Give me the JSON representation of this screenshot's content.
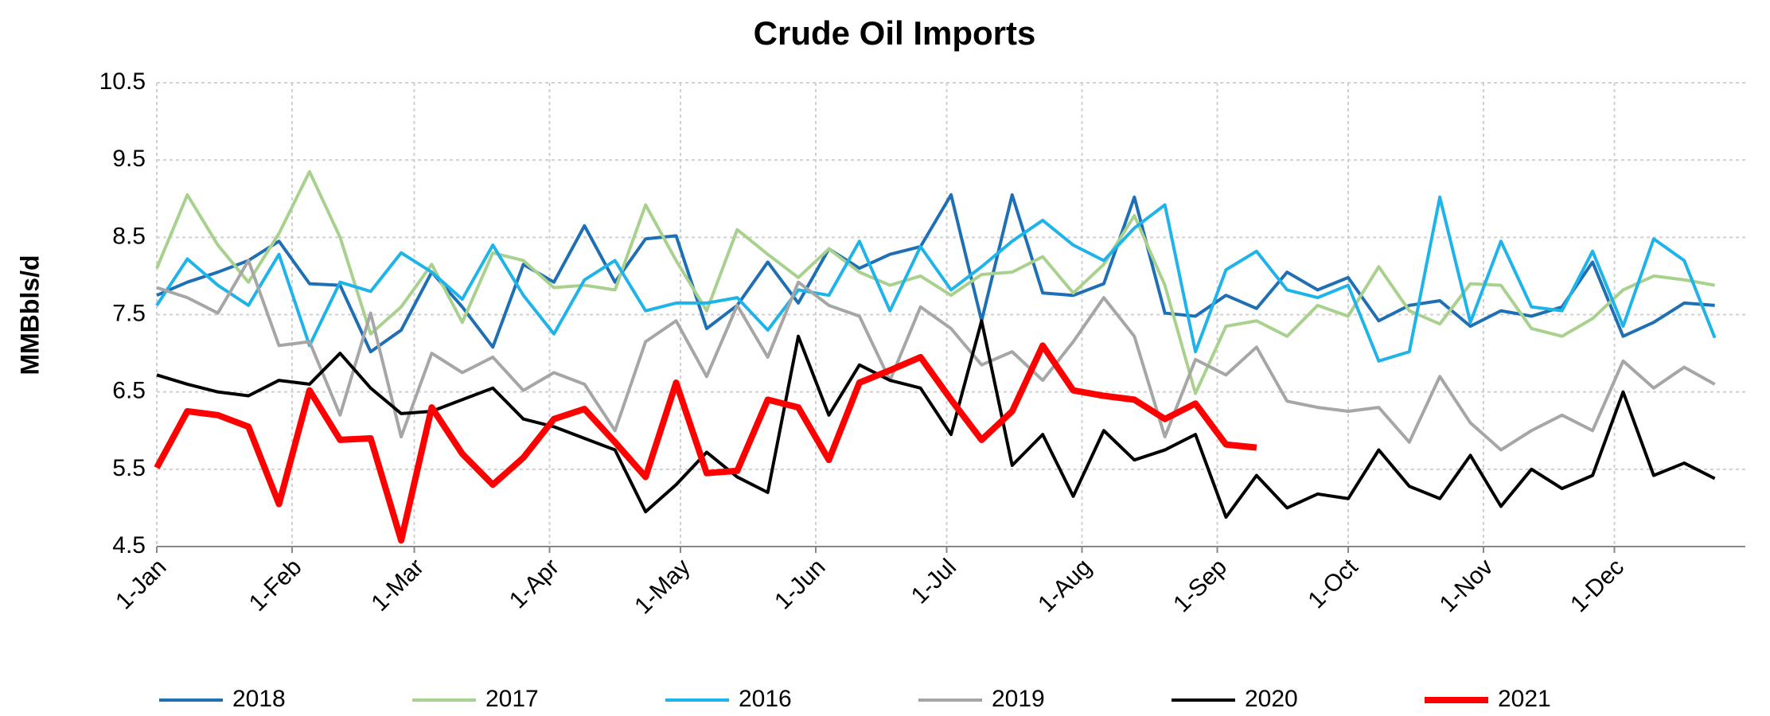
{
  "chart_data": {
    "type": "line",
    "title": "Crude Oil Imports",
    "y_label": "MMBbls/d",
    "x": [
      0,
      7,
      14,
      21,
      28,
      35,
      42,
      49,
      56,
      63,
      70,
      77,
      84,
      91,
      98,
      105,
      112,
      119,
      126,
      133,
      140,
      147,
      154,
      161,
      168,
      175,
      182,
      189,
      196,
      203,
      210,
      217,
      224,
      231,
      238,
      245,
      252,
      259,
      266,
      273,
      280,
      287,
      294,
      301,
      308,
      315,
      322,
      329,
      336,
      343,
      350,
      357
    ],
    "xlim": [
      0,
      364
    ],
    "xticks": [
      {
        "value": 0,
        "label": "1-Jan"
      },
      {
        "value": 31,
        "label": "1-Feb"
      },
      {
        "value": 59,
        "label": "1-Mar"
      },
      {
        "value": 90,
        "label": "1-Apr"
      },
      {
        "value": 120,
        "label": "1-May"
      },
      {
        "value": 151,
        "label": "1-Jun"
      },
      {
        "value": 181,
        "label": "1-Jul"
      },
      {
        "value": 212,
        "label": "1-Aug"
      },
      {
        "value": 243,
        "label": "1-Sep"
      },
      {
        "value": 273,
        "label": "1-Oct"
      },
      {
        "value": 304,
        "label": "1-Nov"
      },
      {
        "value": 334,
        "label": "1-Dec"
      }
    ],
    "ylim": [
      4.5,
      10.5
    ],
    "yticks": [
      4.5,
      5.5,
      6.5,
      7.5,
      8.5,
      9.5,
      10.5
    ],
    "grid": true,
    "legend": "bottom",
    "series": [
      {
        "name": "2018",
        "color": "#1f6fb4",
        "width": 4,
        "values": [
          7.75,
          7.92,
          8.05,
          8.2,
          8.45,
          7.9,
          7.88,
          7.02,
          7.3,
          8.05,
          7.6,
          7.08,
          8.15,
          7.92,
          8.65,
          7.92,
          8.48,
          8.52,
          7.32,
          7.62,
          8.18,
          7.65,
          8.35,
          8.1,
          8.28,
          8.38,
          9.05,
          7.42,
          9.05,
          7.78,
          7.75,
          7.9,
          9.02,
          7.52,
          7.48,
          7.75,
          7.58,
          8.05,
          7.82,
          7.98,
          7.42,
          7.62,
          7.68,
          7.35,
          7.55,
          7.48,
          7.6,
          8.18,
          7.22,
          7.4,
          7.65,
          7.62
        ]
      },
      {
        "name": "2017",
        "color": "#a9d18e",
        "width": 4,
        "values": [
          8.1,
          9.05,
          8.4,
          7.92,
          8.55,
          9.35,
          8.5,
          7.25,
          7.6,
          8.15,
          7.4,
          8.3,
          8.2,
          7.85,
          7.88,
          7.82,
          8.92,
          8.2,
          7.55,
          8.6,
          8.28,
          7.98,
          8.35,
          8.05,
          7.88,
          8.0,
          7.75,
          8.02,
          8.05,
          8.25,
          7.78,
          8.15,
          8.78,
          7.88,
          6.48,
          7.35,
          7.42,
          7.22,
          7.62,
          7.48,
          8.12,
          7.55,
          7.38,
          7.9,
          7.88,
          7.32,
          7.22,
          7.45,
          7.82,
          8.0,
          7.95,
          7.88
        ]
      },
      {
        "name": "2016",
        "color": "#1eb4ea",
        "width": 4,
        "values": [
          7.62,
          8.22,
          7.88,
          7.62,
          8.28,
          7.1,
          7.92,
          7.8,
          8.3,
          8.05,
          7.7,
          8.4,
          7.75,
          7.25,
          7.95,
          8.2,
          7.55,
          7.65,
          7.65,
          7.72,
          7.3,
          7.82,
          7.75,
          8.45,
          7.55,
          8.38,
          7.82,
          8.12,
          8.45,
          8.72,
          8.4,
          8.2,
          8.62,
          8.92,
          7.02,
          8.08,
          8.32,
          7.82,
          7.72,
          7.88,
          6.9,
          7.02,
          9.02,
          7.4,
          8.45,
          7.6,
          7.55,
          8.32,
          7.35,
          8.48,
          8.2,
          7.2
        ]
      },
      {
        "name": "2019",
        "color": "#a6a6a6",
        "width": 4,
        "values": [
          7.85,
          7.72,
          7.52,
          8.2,
          7.1,
          7.15,
          6.2,
          7.52,
          5.92,
          7.0,
          6.75,
          6.95,
          6.52,
          6.75,
          6.6,
          6.0,
          7.15,
          7.42,
          6.7,
          7.62,
          6.95,
          7.92,
          7.62,
          7.48,
          6.65,
          7.6,
          7.32,
          6.85,
          7.02,
          6.65,
          7.15,
          7.72,
          7.22,
          5.92,
          6.92,
          6.72,
          7.08,
          6.38,
          6.3,
          6.25,
          6.3,
          5.85,
          6.7,
          6.1,
          5.75,
          6.0,
          6.2,
          6.0,
          6.9,
          6.55,
          6.82,
          6.6
        ]
      },
      {
        "name": "2020",
        "color": "#000000",
        "width": 4,
        "values": [
          6.72,
          6.6,
          6.5,
          6.45,
          6.65,
          6.6,
          7.0,
          6.55,
          6.22,
          6.25,
          6.4,
          6.55,
          6.15,
          6.05,
          5.9,
          5.75,
          4.95,
          5.3,
          5.72,
          5.4,
          5.2,
          7.22,
          6.2,
          6.85,
          6.65,
          6.55,
          5.95,
          7.42,
          5.55,
          5.95,
          5.15,
          6.0,
          5.62,
          5.75,
          5.95,
          4.88,
          5.42,
          5.0,
          5.18,
          5.12,
          5.75,
          5.28,
          5.12,
          5.68,
          5.02,
          5.5,
          5.25,
          5.42,
          6.5,
          5.42,
          5.58,
          5.38
        ]
      },
      {
        "name": "2021",
        "color": "#ff0000",
        "width": 8,
        "values": [
          5.52,
          6.25,
          6.2,
          6.05,
          5.05,
          6.52,
          5.88,
          5.9,
          4.58,
          6.3,
          5.7,
          5.3,
          5.65,
          6.15,
          6.28,
          5.85,
          5.4,
          6.62,
          5.45,
          5.48,
          6.4,
          6.3,
          5.62,
          6.62,
          6.78,
          6.95,
          6.4,
          5.88,
          6.25,
          7.1,
          6.52,
          6.45,
          6.4,
          6.15,
          6.35,
          5.82,
          5.78,
          null,
          null,
          null,
          null,
          null,
          null,
          null,
          null,
          null,
          null,
          null,
          null,
          null,
          null,
          null
        ]
      }
    ]
  }
}
